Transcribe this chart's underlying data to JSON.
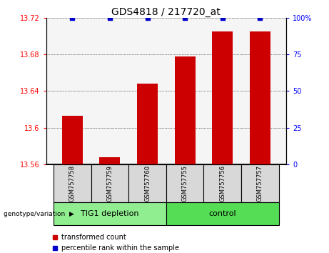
{
  "title": "GDS4818 / 217720_at",
  "samples": [
    "GSM757758",
    "GSM757759",
    "GSM757760",
    "GSM757755",
    "GSM757756",
    "GSM757757"
  ],
  "transformed_counts": [
    13.613,
    13.568,
    13.648,
    13.678,
    13.705,
    13.705
  ],
  "percentile_ranks": [
    100,
    100,
    100,
    100,
    100,
    100
  ],
  "ylim_left": [
    13.56,
    13.72
  ],
  "ylim_right": [
    0,
    100
  ],
  "yticks_left": [
    13.56,
    13.6,
    13.64,
    13.68,
    13.72
  ],
  "yticks_right": [
    0,
    25,
    50,
    75,
    100
  ],
  "ytick_labels_left": [
    "13.56",
    "13.6",
    "13.64",
    "13.68",
    "13.72"
  ],
  "ytick_labels_right": [
    "0",
    "25",
    "50",
    "75",
    "100%"
  ],
  "bar_color": "#cc0000",
  "scatter_color": "#0000cc",
  "bg_plot": "#f5f5f5",
  "bg_sample": "#d8d8d8",
  "bg_group1": "#90ee90",
  "bg_group2": "#55dd55",
  "groups": [
    {
      "label": "TIG1 depletion",
      "start": 0,
      "end": 3
    },
    {
      "label": "control",
      "start": 3,
      "end": 6
    }
  ],
  "group_label_prefix": "genotype/variation",
  "legend_items": [
    {
      "color": "#cc0000",
      "label": "transformed count"
    },
    {
      "color": "#0000cc",
      "label": "percentile rank within the sample"
    }
  ],
  "bar_width": 0.55,
  "figsize": [
    4.61,
    3.54
  ],
  "dpi": 100
}
